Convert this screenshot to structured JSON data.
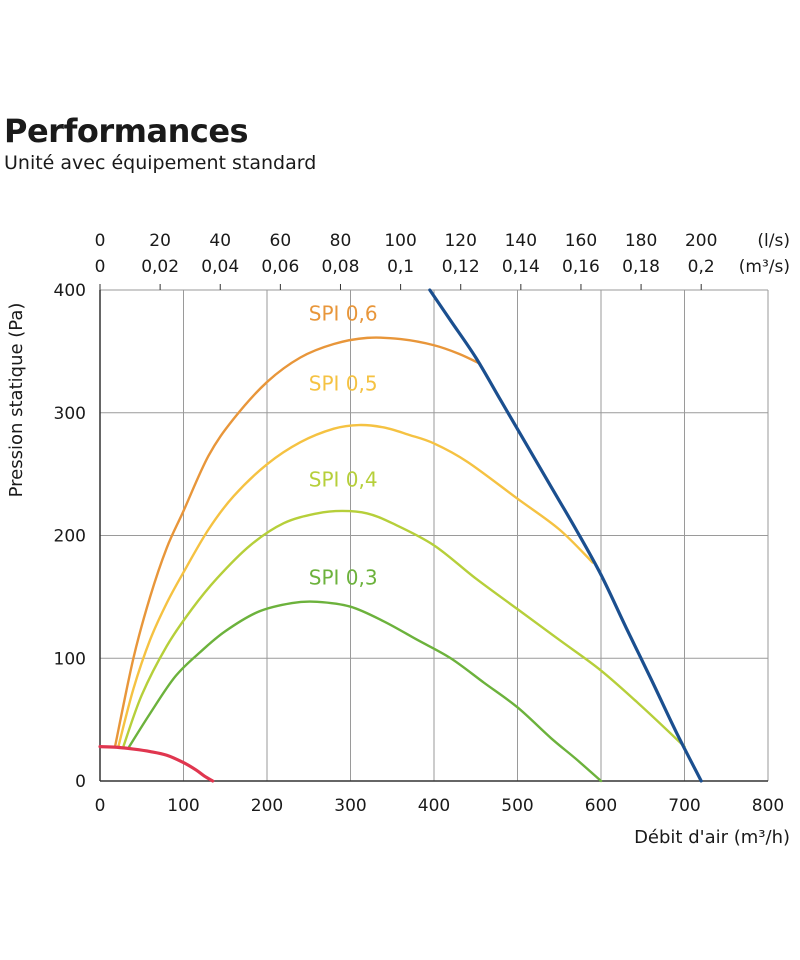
{
  "header": {
    "title": "Performances",
    "subtitle": "Unité avec équipement standard"
  },
  "chart_data": {
    "type": "line",
    "xlabel": "Débit d'air (m³/h)",
    "ylabel": "Pression statique  (Pa)",
    "xlim": [
      0,
      800
    ],
    "ylim": [
      0,
      400
    ],
    "x_ticks": [
      0,
      100,
      200,
      300,
      400,
      500,
      600,
      700,
      800
    ],
    "y_ticks": [
      0,
      100,
      200,
      300,
      400
    ],
    "grid": true,
    "top_axis_ls": {
      "unit": "(l/s)",
      "ticks": [
        "0",
        "20",
        "40",
        "60",
        "80",
        "100",
        "120",
        "140",
        "160",
        "180",
        "200"
      ],
      "values": [
        0,
        20,
        40,
        60,
        80,
        100,
        120,
        140,
        160,
        180,
        200
      ]
    },
    "top_axis_m3s": {
      "unit": "(m³/s)",
      "ticks": [
        "0",
        "0,02",
        "0,04",
        "0,06",
        "0,08",
        "0,1",
        "0,12",
        "0,14",
        "0,16",
        "0,18",
        "0,2"
      ],
      "values": [
        0,
        0.02,
        0.04,
        0.06,
        0.08,
        0.1,
        0.12,
        0.14,
        0.16,
        0.18,
        0.2
      ]
    },
    "series": [
      {
        "name": "SPI 0,6",
        "color": "#e8963a",
        "x": [
          18,
          40,
          60,
          80,
          100,
          130,
          160,
          200,
          240,
          280,
          320,
          360,
          400,
          430,
          455
        ],
        "y": [
          28,
          100,
          150,
          190,
          220,
          265,
          295,
          325,
          345,
          356,
          361,
          360,
          355,
          348,
          340
        ]
      },
      {
        "name": "SPI 0,5",
        "color": "#f5c242",
        "x": [
          22,
          40,
          60,
          80,
          100,
          130,
          160,
          200,
          240,
          280,
          310,
          340,
          370,
          400,
          440,
          500,
          550,
          590
        ],
        "y": [
          28,
          75,
          115,
          145,
          170,
          205,
          232,
          258,
          276,
          287,
          290,
          288,
          282,
          275,
          260,
          230,
          205,
          178
        ]
      },
      {
        "name": "SPI 0,4",
        "color": "#b6cf3a",
        "x": [
          28,
          50,
          80,
          110,
          140,
          180,
          220,
          260,
          290,
          320,
          350,
          400,
          450,
          500,
          550,
          600,
          650,
          700
        ],
        "y": [
          28,
          70,
          110,
          140,
          165,
          192,
          210,
          218,
          220,
          218,
          210,
          192,
          165,
          140,
          115,
          90,
          60,
          28
        ]
      },
      {
        "name": "SPI 0,3",
        "color": "#6cb23c",
        "x": [
          35,
          60,
          90,
          120,
          150,
          190,
          230,
          260,
          300,
          340,
          380,
          420,
          460,
          500,
          540,
          570,
          600
        ],
        "y": [
          28,
          55,
          85,
          105,
          122,
          138,
          145,
          146,
          142,
          130,
          115,
          100,
          80,
          60,
          35,
          18,
          0
        ]
      },
      {
        "name": "",
        "color": "#1b4f8f",
        "x": [
          395,
          420,
          450,
          480,
          510,
          540,
          570,
          600,
          630,
          660,
          690,
          720
        ],
        "y": [
          400,
          375,
          345,
          310,
          275,
          240,
          205,
          168,
          125,
          83,
          40,
          0
        ]
      },
      {
        "name": "",
        "color": "#e0364f",
        "x": [
          0,
          20,
          40,
          60,
          80,
          100,
          115,
          125,
          135
        ],
        "y": [
          28,
          27.5,
          26,
          24,
          21,
          15,
          9,
          4,
          0
        ]
      }
    ],
    "annotations": [
      {
        "text": "SPI 0,6",
        "x": 250,
        "y": 375,
        "color": "#e8963a"
      },
      {
        "text": "SPI 0,5",
        "x": 250,
        "y": 318,
        "color": "#f5c242"
      },
      {
        "text": "SPI 0,4",
        "x": 250,
        "y": 240,
        "color": "#b6cf3a"
      },
      {
        "text": "SPI 0,3",
        "x": 250,
        "y": 160,
        "color": "#6cb23c"
      }
    ]
  }
}
